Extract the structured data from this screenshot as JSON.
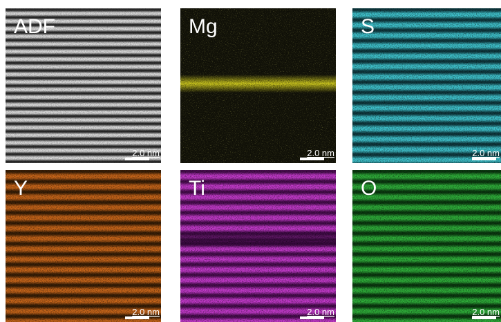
{
  "panels": [
    {
      "label": "ADF",
      "scale_bar": "2.0 nm"
    },
    {
      "label": "Mg",
      "scale_bar": "2.0 nm"
    },
    {
      "label": "S",
      "scale_bar": "2.0 nm"
    },
    {
      "label": "Y",
      "scale_bar": "2.0 nm"
    },
    {
      "label": "Ti",
      "scale_bar": "2.0 nm"
    },
    {
      "label": "O",
      "scale_bar": "2.0 nm"
    }
  ]
}
